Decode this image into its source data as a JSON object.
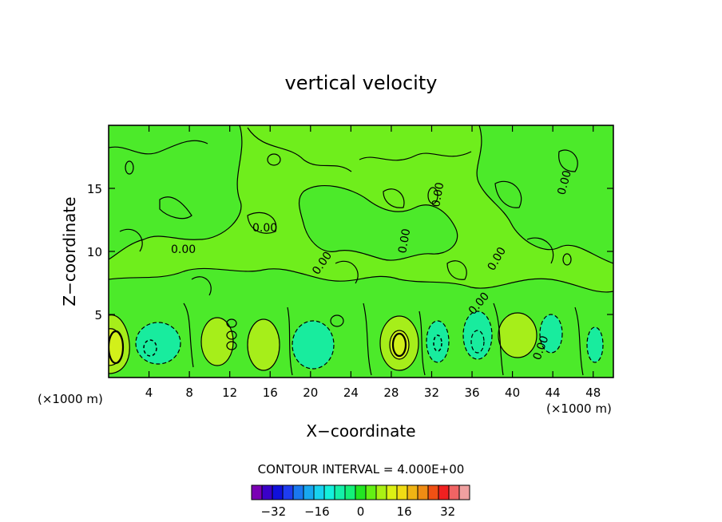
{
  "chart_data": {
    "type": "heatmap",
    "title": "vertical velocity",
    "xlabel": "X−coordinate",
    "ylabel": "Z−coordinate",
    "x_unit_left": "(×1000 m)",
    "x_unit_right": "(×1000 m)",
    "xlim": [
      0,
      50
    ],
    "ylim": [
      0,
      20
    ],
    "x_ticks": [
      4,
      8,
      12,
      16,
      20,
      24,
      28,
      32,
      36,
      40,
      44,
      48
    ],
    "y_ticks": [
      5,
      10,
      15
    ],
    "contour_interval_label": "CONTOUR INTERVAL = 4.000E+00",
    "contour_labels": [
      "0.00",
      "0.00",
      "0.00",
      "0.00",
      "0.00",
      "0.00",
      "0.00",
      "0.00",
      "0.00"
    ],
    "colorbar": {
      "levels": [
        -40,
        -36,
        -32,
        -28,
        -24,
        -20,
        -16,
        -12,
        -8,
        -4,
        0,
        4,
        8,
        12,
        16,
        20,
        24,
        28,
        32,
        36,
        40
      ],
      "tick_values": [
        "−32",
        "−16",
        "0",
        "16",
        "32"
      ],
      "colors": [
        "#7a00b4",
        "#3a00c8",
        "#1010dc",
        "#1e3cf0",
        "#1a78f0",
        "#18a8f0",
        "#18d2f0",
        "#14f0dc",
        "#14f0a8",
        "#14f078",
        "#22e622",
        "#64f014",
        "#aaf014",
        "#dcf014",
        "#f0dc14",
        "#f0b414",
        "#f08c14",
        "#f05014",
        "#f02020",
        "#f06464",
        "#f0a0a0"
      ]
    }
  }
}
